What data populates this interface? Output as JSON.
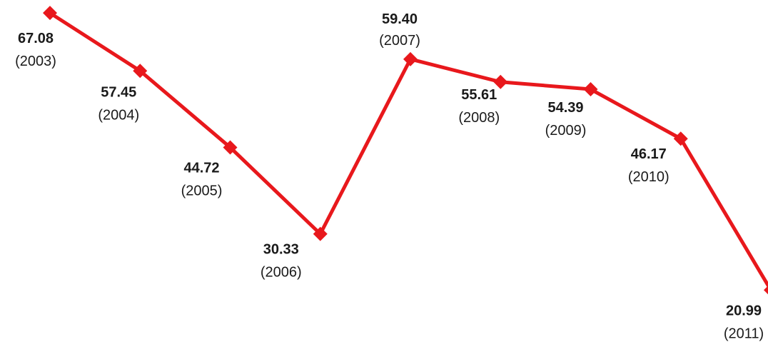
{
  "chart_data": {
    "type": "line",
    "title": "",
    "xlabel": "",
    "ylabel": "",
    "categories": [
      "2003",
      "2004",
      "2005",
      "2006",
      "2007",
      "2008",
      "2009",
      "2010",
      "2011"
    ],
    "values": [
      67.08,
      57.45,
      44.72,
      30.33,
      59.4,
      55.61,
      54.39,
      46.17,
      20.99
    ],
    "value_labels": [
      "67.08",
      "57.45",
      "44.72",
      "30.33",
      "59.40",
      "55.61",
      "54.39",
      "46.17",
      "20.99"
    ],
    "year_labels": [
      "(2003)",
      "(2004)",
      "(2005)",
      "(2006)",
      "(2007)",
      "(2008)",
      "(2009)",
      "(2010)",
      "(2011)"
    ],
    "grid": false,
    "legend": "none",
    "series_color": "#e8181c",
    "marker": "diamond"
  }
}
